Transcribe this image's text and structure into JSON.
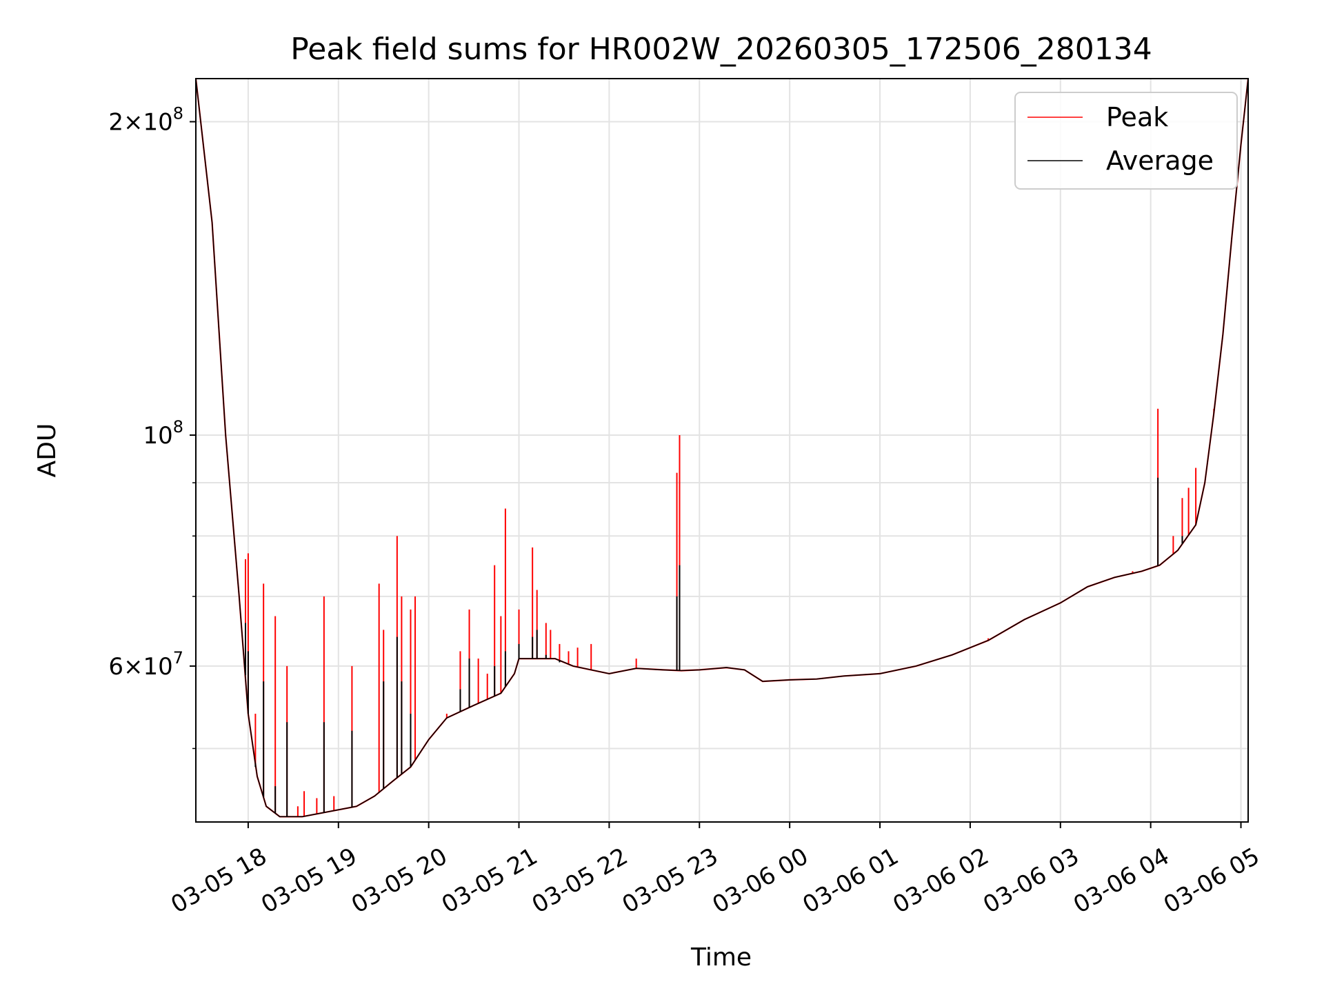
{
  "chart_data": {
    "type": "line",
    "title": "Peak field sums for HR002W_20260305_172506_280134",
    "xlabel": "Time",
    "ylabel": "ADU",
    "yscale": "log",
    "xlim_hours": [
      17.42,
      29.08
    ],
    "ylim": [
      42500000,
      220000000
    ],
    "grid": true,
    "legend_position": "top-right",
    "x_ticks": [
      {
        "label": "03-05 18",
        "hours": 18
      },
      {
        "label": "03-05 19",
        "hours": 19
      },
      {
        "label": "03-05 20",
        "hours": 20
      },
      {
        "label": "03-05 21",
        "hours": 21
      },
      {
        "label": "03-05 22",
        "hours": 22
      },
      {
        "label": "03-05 23",
        "hours": 23
      },
      {
        "label": "03-06 00",
        "hours": 24
      },
      {
        "label": "03-06 01",
        "hours": 25
      },
      {
        "label": "03-06 02",
        "hours": 26
      },
      {
        "label": "03-06 03",
        "hours": 27
      },
      {
        "label": "03-06 04",
        "hours": 28
      },
      {
        "label": "03-06 05",
        "hours": 29
      }
    ],
    "y_major_ticks": [
      {
        "value": 200000000,
        "base": "2×10",
        "exp": "8"
      },
      {
        "value": 100000000,
        "base": "10",
        "exp": "8"
      },
      {
        "value": 60000000,
        "base": "6×10",
        "exp": "7"
      }
    ],
    "y_minor_ticks": [
      50000000,
      70000000,
      80000000,
      90000000
    ],
    "series": [
      {
        "name": "Peak",
        "color": "#ff0000",
        "baseline": [
          [
            17.42,
            220000000
          ],
          [
            17.6,
            160000000
          ],
          [
            17.75,
            100000000
          ],
          [
            17.9,
            70000000
          ],
          [
            18.0,
            54000000
          ],
          [
            18.1,
            47000000
          ],
          [
            18.2,
            44000000
          ],
          [
            18.35,
            43000000
          ],
          [
            18.6,
            43000000
          ],
          [
            18.9,
            43500000
          ],
          [
            19.2,
            44000000
          ],
          [
            19.4,
            45000000
          ],
          [
            19.6,
            46500000
          ],
          [
            19.8,
            48000000
          ],
          [
            20.0,
            51000000
          ],
          [
            20.2,
            53500000
          ],
          [
            20.5,
            55000000
          ],
          [
            20.8,
            56500000
          ],
          [
            20.95,
            59000000
          ],
          [
            21.0,
            61000000
          ],
          [
            21.4,
            61000000
          ],
          [
            21.6,
            60000000
          ],
          [
            21.8,
            59500000
          ],
          [
            22.0,
            59000000
          ],
          [
            22.3,
            59700000
          ],
          [
            22.6,
            59500000
          ],
          [
            22.8,
            59400000
          ],
          [
            23.0,
            59500000
          ],
          [
            23.3,
            59800000
          ],
          [
            23.5,
            59500000
          ],
          [
            23.7,
            58000000
          ],
          [
            24.0,
            58200000
          ],
          [
            24.3,
            58300000
          ],
          [
            24.6,
            58700000
          ],
          [
            25.0,
            59000000
          ],
          [
            25.4,
            60000000
          ],
          [
            25.8,
            61500000
          ],
          [
            26.2,
            63500000
          ],
          [
            26.6,
            66500000
          ],
          [
            27.0,
            69000000
          ],
          [
            27.3,
            71500000
          ],
          [
            27.6,
            73000000
          ],
          [
            27.9,
            74000000
          ],
          [
            28.1,
            75000000
          ],
          [
            28.3,
            77500000
          ],
          [
            28.5,
            82000000
          ],
          [
            28.6,
            90000000
          ],
          [
            28.7,
            105000000
          ],
          [
            28.8,
            125000000
          ],
          [
            28.9,
            155000000
          ],
          [
            29.0,
            190000000
          ],
          [
            29.08,
            220000000
          ]
        ],
        "spikes": [
          [
            17.97,
            76000000
          ],
          [
            18.0,
            77000000
          ],
          [
            18.08,
            54000000
          ],
          [
            18.17,
            72000000
          ],
          [
            18.3,
            67000000
          ],
          [
            18.43,
            60000000
          ],
          [
            18.55,
            44000000
          ],
          [
            18.62,
            45500000
          ],
          [
            18.76,
            44800000
          ],
          [
            18.84,
            70000000
          ],
          [
            18.95,
            45000000
          ],
          [
            19.15,
            60000000
          ],
          [
            19.45,
            72000000
          ],
          [
            19.5,
            65000000
          ],
          [
            19.65,
            80000000
          ],
          [
            19.7,
            70000000
          ],
          [
            19.8,
            68000000
          ],
          [
            19.85,
            70000000
          ],
          [
            20.2,
            54000000
          ],
          [
            20.35,
            62000000
          ],
          [
            20.45,
            68000000
          ],
          [
            20.55,
            61000000
          ],
          [
            20.65,
            59000000
          ],
          [
            20.73,
            75000000
          ],
          [
            20.8,
            67000000
          ],
          [
            20.85,
            85000000
          ],
          [
            21.0,
            68000000
          ],
          [
            21.15,
            78000000
          ],
          [
            21.2,
            71000000
          ],
          [
            21.3,
            66000000
          ],
          [
            21.35,
            65000000
          ],
          [
            21.45,
            63000000
          ],
          [
            21.55,
            62000000
          ],
          [
            21.65,
            62500000
          ],
          [
            21.8,
            63000000
          ],
          [
            22.3,
            61000000
          ],
          [
            22.75,
            92000000
          ],
          [
            22.78,
            100000000
          ],
          [
            25.0,
            59000000
          ],
          [
            26.2,
            63800000
          ],
          [
            27.0,
            69000000
          ],
          [
            27.8,
            74000000
          ],
          [
            28.08,
            106000000
          ],
          [
            28.25,
            80000000
          ],
          [
            28.35,
            87000000
          ],
          [
            28.42,
            89000000
          ],
          [
            28.5,
            93000000
          ],
          [
            28.7,
            106000000
          ]
        ]
      },
      {
        "name": "Average",
        "color": "#000000",
        "baseline": [
          [
            17.42,
            220000000
          ],
          [
            17.6,
            160000000
          ],
          [
            17.75,
            100000000
          ],
          [
            17.9,
            70000000
          ],
          [
            18.0,
            54000000
          ],
          [
            18.1,
            47000000
          ],
          [
            18.2,
            44000000
          ],
          [
            18.35,
            43000000
          ],
          [
            18.6,
            43000000
          ],
          [
            18.9,
            43500000
          ],
          [
            19.2,
            44000000
          ],
          [
            19.4,
            45000000
          ],
          [
            19.6,
            46500000
          ],
          [
            19.8,
            48000000
          ],
          [
            20.0,
            51000000
          ],
          [
            20.2,
            53500000
          ],
          [
            20.5,
            55000000
          ],
          [
            20.8,
            56500000
          ],
          [
            20.95,
            59000000
          ],
          [
            21.0,
            61000000
          ],
          [
            21.4,
            61000000
          ],
          [
            21.6,
            60000000
          ],
          [
            21.8,
            59500000
          ],
          [
            22.0,
            59000000
          ],
          [
            22.3,
            59700000
          ],
          [
            22.6,
            59500000
          ],
          [
            22.8,
            59400000
          ],
          [
            23.0,
            59500000
          ],
          [
            23.3,
            59800000
          ],
          [
            23.5,
            59500000
          ],
          [
            23.7,
            58000000
          ],
          [
            24.0,
            58200000
          ],
          [
            24.3,
            58300000
          ],
          [
            24.6,
            58700000
          ],
          [
            25.0,
            59000000
          ],
          [
            25.4,
            60000000
          ],
          [
            25.8,
            61500000
          ],
          [
            26.2,
            63500000
          ],
          [
            26.6,
            66500000
          ],
          [
            27.0,
            69000000
          ],
          [
            27.3,
            71500000
          ],
          [
            27.6,
            73000000
          ],
          [
            27.9,
            74000000
          ],
          [
            28.1,
            75000000
          ],
          [
            28.3,
            77500000
          ],
          [
            28.5,
            82000000
          ],
          [
            28.6,
            90000000
          ],
          [
            28.7,
            105000000
          ],
          [
            28.8,
            125000000
          ],
          [
            28.9,
            155000000
          ],
          [
            29.0,
            190000000
          ],
          [
            29.08,
            220000000
          ]
        ],
        "spikes": [
          [
            17.97,
            66000000
          ],
          [
            18.0,
            62000000
          ],
          [
            18.08,
            48000000
          ],
          [
            18.17,
            58000000
          ],
          [
            18.3,
            46000000
          ],
          [
            18.43,
            53000000
          ],
          [
            18.84,
            53000000
          ],
          [
            19.15,
            52000000
          ],
          [
            19.5,
            58000000
          ],
          [
            19.65,
            64000000
          ],
          [
            19.7,
            58000000
          ],
          [
            19.8,
            54000000
          ],
          [
            20.35,
            57000000
          ],
          [
            20.45,
            61000000
          ],
          [
            20.73,
            60000000
          ],
          [
            20.85,
            62000000
          ],
          [
            21.0,
            63000000
          ],
          [
            21.15,
            64000000
          ],
          [
            21.2,
            65000000
          ],
          [
            21.3,
            61500000
          ],
          [
            21.45,
            60500000
          ],
          [
            22.75,
            70000000
          ],
          [
            22.78,
            75000000
          ],
          [
            28.08,
            91000000
          ],
          [
            28.35,
            80000000
          ]
        ]
      }
    ]
  }
}
